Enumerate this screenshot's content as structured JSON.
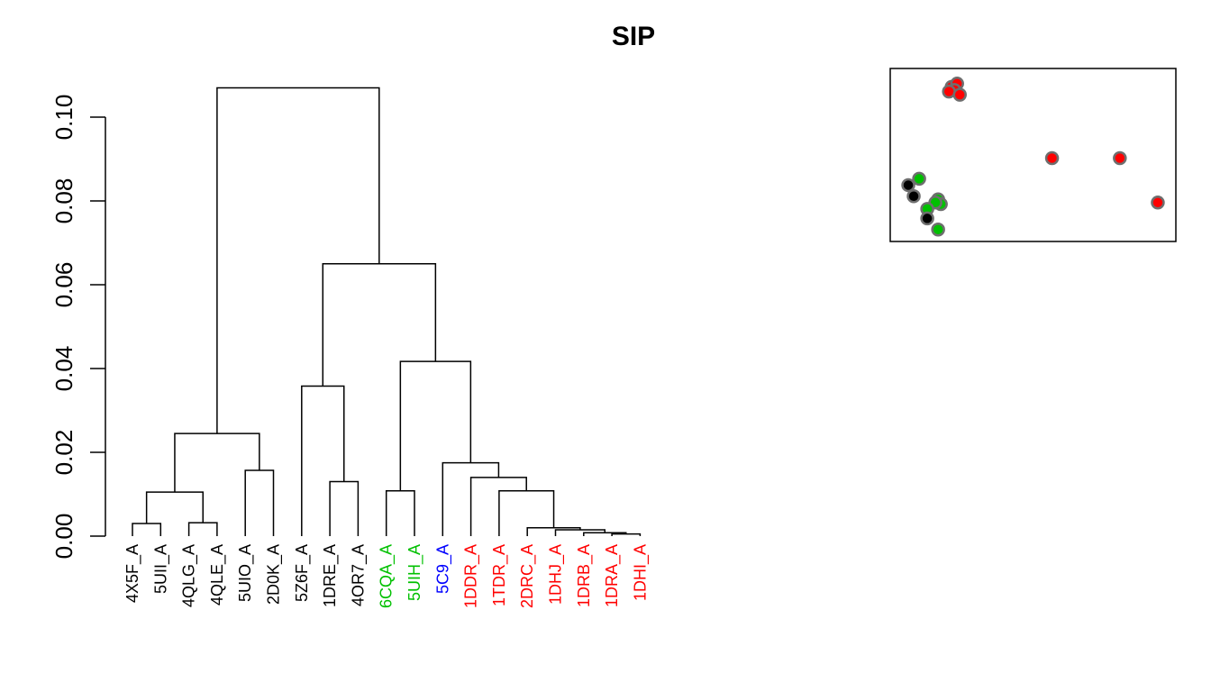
{
  "chart_data": {
    "type": "dendrogram",
    "title": "SIP",
    "xlabel": "",
    "ylabel": "",
    "ylim": [
      0,
      0.1
    ],
    "y_ticks": [
      {
        "value": 0.0,
        "label": "0.00"
      },
      {
        "value": 0.02,
        "label": "0.02"
      },
      {
        "value": 0.04,
        "label": "0.04"
      },
      {
        "value": 0.06,
        "label": "0.06"
      },
      {
        "value": 0.08,
        "label": "0.08"
      },
      {
        "value": 0.1,
        "label": "0.10"
      }
    ],
    "leaves": [
      {
        "label": "4X5F_A",
        "color": "#000000"
      },
      {
        "label": "5UII_A",
        "color": "#000000"
      },
      {
        "label": "4QLG_A",
        "color": "#000000"
      },
      {
        "label": "4QLE_A",
        "color": "#000000"
      },
      {
        "label": "5UIO_A",
        "color": "#000000"
      },
      {
        "label": "2D0K_A",
        "color": "#000000"
      },
      {
        "label": "5Z6F_A",
        "color": "#000000"
      },
      {
        "label": "1DRE_A",
        "color": "#000000"
      },
      {
        "label": "4OR7_A",
        "color": "#000000"
      },
      {
        "label": "6CQA_A",
        "color": "#00c000"
      },
      {
        "label": "5UIH_A",
        "color": "#00c000"
      },
      {
        "label": "5C9_A",
        "color": "#0000ff"
      },
      {
        "label": "1DDR_A",
        "color": "#ff0000"
      },
      {
        "label": "1TDR_A",
        "color": "#ff0000"
      },
      {
        "label": "2DRC_A",
        "color": "#ff0000"
      },
      {
        "label": "1DHJ_A",
        "color": "#ff0000"
      },
      {
        "label": "1DRB_A",
        "color": "#ff0000"
      },
      {
        "label": "1DRA_A",
        "color": "#ff0000"
      },
      {
        "label": "1DHI_A",
        "color": "#ff0000"
      }
    ],
    "merges": [
      [
        -1,
        -2,
        0.003
      ],
      [
        -3,
        -4,
        0.0032
      ],
      [
        -18,
        -19,
        0.0005
      ],
      [
        -17,
        3,
        0.0008
      ],
      [
        -16,
        4,
        0.0015
      ],
      [
        -15,
        5,
        0.002
      ],
      [
        -14,
        6,
        0.0108
      ],
      [
        -13,
        7,
        0.014
      ],
      [
        -10,
        -11,
        0.0108
      ],
      [
        -8,
        -9,
        0.013
      ],
      [
        -5,
        -6,
        0.0157
      ],
      [
        1,
        2,
        0.0105
      ],
      [
        12,
        11,
        0.0245
      ],
      [
        -12,
        8,
        0.0175
      ],
      [
        -7,
        10,
        0.0358
      ],
      [
        9,
        14,
        0.0417
      ],
      [
        15,
        16,
        0.065
      ],
      [
        13,
        17,
        0.107
      ]
    ],
    "inset_scatter": {
      "xlim": [
        0,
        1
      ],
      "ylim": [
        0,
        1
      ],
      "points": [
        {
          "x": 0.2,
          "y": 0.93,
          "color": "#ff0000"
        },
        {
          "x": 0.22,
          "y": 0.95,
          "color": "#ff0000"
        },
        {
          "x": 0.21,
          "y": 0.91,
          "color": "#ff0000"
        },
        {
          "x": 0.19,
          "y": 0.9,
          "color": "#ff0000"
        },
        {
          "x": 0.23,
          "y": 0.88,
          "color": "#ff0000"
        },
        {
          "x": 0.57,
          "y": 0.48,
          "color": "#ff0000"
        },
        {
          "x": 0.82,
          "y": 0.48,
          "color": "#ff0000"
        },
        {
          "x": 0.96,
          "y": 0.2,
          "color": "#ff0000"
        },
        {
          "x": 0.08,
          "y": 0.35,
          "color": "#00c000"
        },
        {
          "x": 0.15,
          "y": 0.22,
          "color": "#00c000"
        },
        {
          "x": 0.16,
          "y": 0.19,
          "color": "#00c000"
        },
        {
          "x": 0.14,
          "y": 0.2,
          "color": "#00c000"
        },
        {
          "x": 0.11,
          "y": 0.16,
          "color": "#00c000"
        },
        {
          "x": 0.15,
          "y": 0.03,
          "color": "#00c000"
        },
        {
          "x": 0.04,
          "y": 0.31,
          "color": "#000000"
        },
        {
          "x": 0.06,
          "y": 0.24,
          "color": "#000000"
        },
        {
          "x": 0.11,
          "y": 0.1,
          "color": "#000000"
        }
      ]
    }
  }
}
